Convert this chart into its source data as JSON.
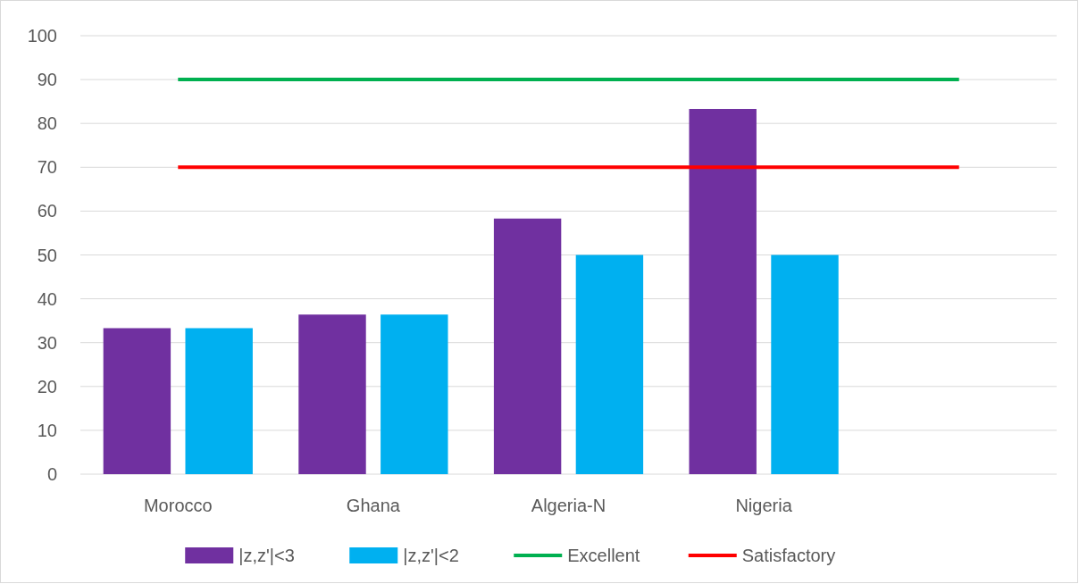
{
  "chart_data": {
    "type": "bar",
    "categories": [
      "Morocco",
      "Ghana",
      "Algeria-N",
      "Nigeria",
      null
    ],
    "series": [
      {
        "name": "|z,z'|<3",
        "color": "#7030a0",
        "values": [
          33.3,
          36.4,
          58.3,
          83.3,
          null
        ]
      },
      {
        "name": "|z,z'|<2",
        "color": "#00b0f0",
        "values": [
          33.3,
          36.4,
          50,
          50,
          null
        ]
      },
      {
        "name": "Excellent",
        "type": "line",
        "color": "#00b050",
        "values": [
          90,
          90,
          90,
          90,
          90
        ]
      },
      {
        "name": "Satisfactory",
        "type": "line",
        "color": "#ff0000",
        "values": [
          70,
          70,
          70,
          70,
          70
        ]
      }
    ],
    "ylim": [
      0,
      100
    ],
    "yticks": [
      0,
      10,
      20,
      30,
      40,
      50,
      60,
      70,
      80,
      90,
      100
    ],
    "grid": "y",
    "legend": "bottom",
    "marker": "none"
  }
}
